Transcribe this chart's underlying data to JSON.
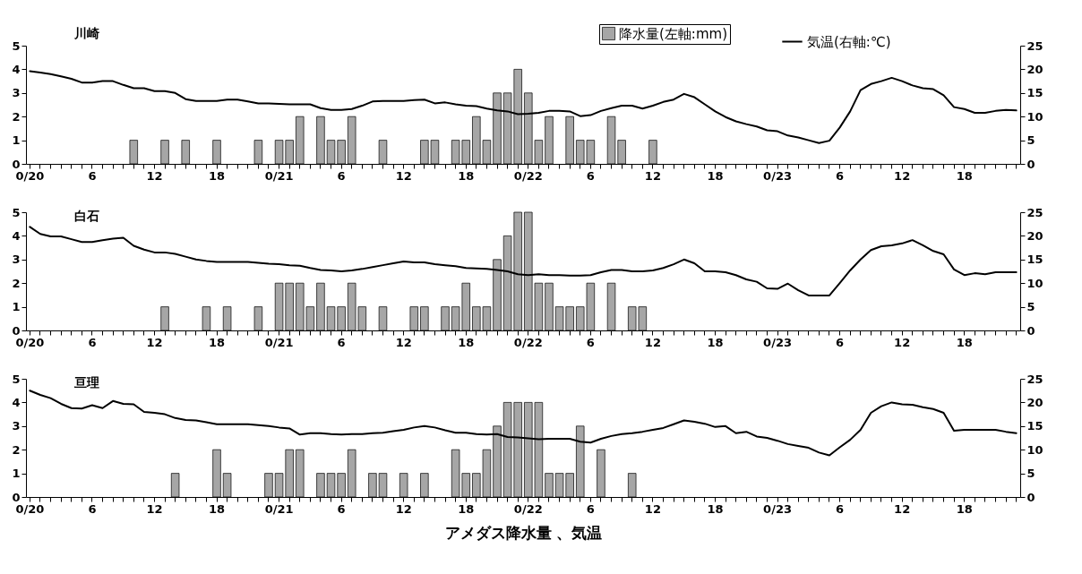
{
  "chart_data": [
    {
      "type": "bar",
      "title": "川崎",
      "legend": "top right",
      "categories": [
        "0/20",
        null,
        null,
        null,
        null,
        null,
        "6",
        null,
        null,
        null,
        null,
        null,
        "12",
        null,
        null,
        null,
        null,
        null,
        "18",
        null,
        null,
        null,
        null,
        null,
        "0/21",
        null,
        null,
        null,
        null,
        null,
        "6",
        null,
        null,
        null,
        null,
        null,
        "12",
        null,
        null,
        null,
        null,
        null,
        "18",
        null,
        null,
        null,
        null,
        null,
        "0/22",
        null,
        null,
        null,
        null,
        null,
        "6",
        null,
        null,
        null,
        null,
        null,
        "12",
        null,
        null,
        null,
        null,
        null,
        "18",
        null,
        null,
        null,
        null,
        null,
        "0/23",
        null,
        null,
        null,
        null,
        null,
        "6",
        null,
        null,
        null,
        null,
        null,
        "12",
        null,
        null,
        null,
        null,
        null,
        "18",
        null,
        null,
        null,
        null,
        null
      ],
      "series": [
        {
          "name": "降水量(左軸:mm)",
          "color": "#a6a6a6",
          "values": [
            0,
            0,
            0,
            0,
            0,
            0,
            0,
            0,
            0,
            0,
            1,
            0,
            0,
            1,
            0,
            1,
            0,
            0,
            1,
            0,
            0,
            0,
            1,
            0,
            1,
            1,
            2,
            0,
            2,
            1,
            1,
            2,
            0,
            0,
            1,
            0,
            0,
            0,
            1,
            1,
            0,
            1,
            1,
            2,
            1,
            3,
            3,
            4,
            3,
            1,
            2,
            0,
            2,
            1,
            1,
            0,
            2,
            1,
            0,
            0,
            1,
            0,
            0,
            0,
            0,
            0,
            0,
            0,
            0,
            0,
            0,
            0,
            0,
            0,
            0,
            0,
            0,
            0,
            0,
            0,
            0,
            0,
            0,
            0,
            0,
            0,
            0,
            0,
            0,
            0,
            0,
            0,
            0,
            0,
            0,
            0
          ]
        },
        {
          "name": "気温(右軸:℃)",
          "type": "line",
          "axis": "y2",
          "color": "#000000",
          "values": [
            19.6,
            19.3,
            19.0,
            18.5,
            18.0,
            17.2,
            17.2,
            17.5,
            17.5,
            16.7,
            16.0,
            16.0,
            15.4,
            15.4,
            15.0,
            13.7,
            13.3,
            13.3,
            13.3,
            13.6,
            13.6,
            13.2,
            12.8,
            12.8,
            12.7,
            12.6,
            12.6,
            12.6,
            11.8,
            11.4,
            11.4,
            11.6,
            12.3,
            13.2,
            13.3,
            13.3,
            13.3,
            13.5,
            13.6,
            12.8,
            13.0,
            12.6,
            12.3,
            12.2,
            11.7,
            11.3,
            11.1,
            10.5,
            10.6,
            10.8,
            11.2,
            11.2,
            11.1,
            10.1,
            10.3,
            11.2,
            11.8,
            12.3,
            12.3,
            11.7,
            12.3,
            13.1,
            13.6,
            14.8,
            14.1,
            12.6,
            11.1,
            9.9,
            9.0,
            8.4,
            7.9,
            7.1,
            6.9,
            6.0,
            5.6,
            5.0,
            4.4,
            4.9,
            7.7,
            11.1,
            15.6,
            16.9,
            17.5,
            18.2,
            17.5,
            16.6,
            16.0,
            15.8,
            14.5,
            12.0,
            11.6,
            10.8,
            10.8,
            11.2,
            11.4,
            11.3
          ]
        }
      ],
      "ylim": [
        0,
        5
      ],
      "yticks": [
        0,
        1,
        2,
        3,
        4,
        5
      ],
      "y2lim": [
        0,
        25
      ],
      "y2ticks": [
        0,
        5,
        10,
        15,
        20,
        25
      ]
    },
    {
      "type": "bar",
      "title": "白石",
      "legend": false,
      "categories": [
        "0/20",
        null,
        null,
        null,
        null,
        null,
        "6",
        null,
        null,
        null,
        null,
        null,
        "12",
        null,
        null,
        null,
        null,
        null,
        "18",
        null,
        null,
        null,
        null,
        null,
        "0/21",
        null,
        null,
        null,
        null,
        null,
        "6",
        null,
        null,
        null,
        null,
        null,
        "12",
        null,
        null,
        null,
        null,
        null,
        "18",
        null,
        null,
        null,
        null,
        null,
        "0/22",
        null,
        null,
        null,
        null,
        null,
        "6",
        null,
        null,
        null,
        null,
        null,
        "12",
        null,
        null,
        null,
        null,
        null,
        "18",
        null,
        null,
        null,
        null,
        null,
        "0/23",
        null,
        null,
        null,
        null,
        null,
        "6",
        null,
        null,
        null,
        null,
        null,
        "12",
        null,
        null,
        null,
        null,
        null,
        "18",
        null,
        null,
        null,
        null,
        null
      ],
      "series": [
        {
          "color": "#a6a6a6",
          "values": [
            0,
            0,
            0,
            0,
            0,
            0,
            0,
            0,
            0,
            0,
            0,
            0,
            0,
            1,
            0,
            0,
            0,
            1,
            0,
            1,
            0,
            0,
            1,
            0,
            2,
            2,
            2,
            1,
            2,
            1,
            1,
            2,
            1,
            0,
            1,
            0,
            0,
            1,
            1,
            0,
            1,
            1,
            2,
            1,
            1,
            3,
            4,
            5,
            5,
            2,
            2,
            1,
            1,
            1,
            2,
            0,
            2,
            0,
            1,
            1,
            0,
            0,
            0,
            0,
            0,
            0,
            0,
            0,
            0,
            0,
            0,
            0,
            0,
            0,
            0,
            0,
            0,
            0,
            0,
            0,
            0,
            0,
            0,
            0,
            0,
            0,
            0,
            0,
            0,
            0,
            0,
            0,
            0,
            0,
            0,
            0
          ]
        },
        {
          "type": "line",
          "axis": "y2",
          "color": "#000000",
          "values": [
            21.9,
            20.4,
            19.9,
            19.9,
            19.3,
            18.7,
            18.7,
            19.1,
            19.4,
            19.6,
            17.9,
            17.1,
            16.5,
            16.5,
            16.2,
            15.6,
            15.0,
            14.7,
            14.5,
            14.5,
            14.5,
            14.5,
            14.3,
            14.1,
            14.0,
            13.8,
            13.7,
            13.2,
            12.8,
            12.7,
            12.5,
            12.7,
            13.0,
            13.4,
            13.8,
            14.2,
            14.6,
            14.4,
            14.4,
            14.0,
            13.8,
            13.6,
            13.2,
            13.1,
            13.0,
            12.8,
            12.5,
            11.9,
            11.7,
            11.9,
            11.7,
            11.7,
            11.6,
            11.6,
            11.7,
            12.3,
            12.8,
            12.8,
            12.5,
            12.5,
            12.7,
            13.2,
            14.0,
            15.0,
            14.2,
            12.5,
            12.5,
            12.3,
            11.7,
            10.8,
            10.3,
            8.9,
            8.8,
            9.9,
            8.5,
            7.4,
            7.4,
            7.4,
            10.0,
            12.7,
            15.0,
            17.0,
            17.8,
            18.0,
            18.4,
            19.1,
            18.0,
            16.8,
            16.1,
            12.9,
            11.7,
            12.1,
            11.9,
            12.3,
            12.3,
            12.3
          ]
        }
      ],
      "ylim": [
        0,
        5
      ],
      "yticks": [
        0,
        1,
        2,
        3,
        4,
        5
      ],
      "y2lim": [
        0,
        25
      ],
      "y2ticks": [
        0,
        5,
        10,
        15,
        20,
        25
      ]
    },
    {
      "type": "bar",
      "title": "亘理",
      "legend": false,
      "xlabel": "アメダス降水量 、気温",
      "categories": [
        "0/20",
        null,
        null,
        null,
        null,
        null,
        "6",
        null,
        null,
        null,
        null,
        null,
        "12",
        null,
        null,
        null,
        null,
        null,
        "18",
        null,
        null,
        null,
        null,
        null,
        "0/21",
        null,
        null,
        null,
        null,
        null,
        "6",
        null,
        null,
        null,
        null,
        null,
        "12",
        null,
        null,
        null,
        null,
        null,
        "18",
        null,
        null,
        null,
        null,
        null,
        "0/22",
        null,
        null,
        null,
        null,
        null,
        "6",
        null,
        null,
        null,
        null,
        null,
        "12",
        null,
        null,
        null,
        null,
        null,
        "18",
        null,
        null,
        null,
        null,
        null,
        "0/23",
        null,
        null,
        null,
        null,
        null,
        "6",
        null,
        null,
        null,
        null,
        null,
        "12",
        null,
        null,
        null,
        null,
        null,
        "18",
        null,
        null,
        null,
        null,
        null
      ],
      "series": [
        {
          "color": "#a6a6a6",
          "values": [
            0,
            0,
            0,
            0,
            0,
            0,
            0,
            0,
            0,
            0,
            0,
            0,
            0,
            0,
            1,
            0,
            0,
            0,
            2,
            1,
            0,
            0,
            0,
            1,
            1,
            2,
            2,
            0,
            1,
            1,
            1,
            2,
            0,
            1,
            1,
            0,
            1,
            0,
            1,
            0,
            0,
            2,
            1,
            1,
            2,
            3,
            4,
            4,
            4,
            4,
            1,
            1,
            1,
            3,
            0,
            2,
            0,
            0,
            1,
            0,
            0,
            0,
            0,
            0,
            0,
            0,
            0,
            0,
            0,
            0,
            0,
            0,
            0,
            0,
            0,
            0,
            0,
            0,
            0,
            0,
            0,
            0,
            0,
            0,
            0,
            0,
            0,
            0,
            0,
            0,
            0,
            0,
            0,
            0,
            0,
            0
          ]
        },
        {
          "type": "line",
          "axis": "y2",
          "color": "#000000",
          "values": [
            22.5,
            21.6,
            20.9,
            19.7,
            18.8,
            18.7,
            19.4,
            18.8,
            20.3,
            19.7,
            19.6,
            18.0,
            17.8,
            17.5,
            16.7,
            16.3,
            16.2,
            15.8,
            15.4,
            15.4,
            15.4,
            15.4,
            15.2,
            15.0,
            14.7,
            14.5,
            13.2,
            13.5,
            13.5,
            13.3,
            13.2,
            13.3,
            13.3,
            13.5,
            13.6,
            13.9,
            14.2,
            14.7,
            15.0,
            14.7,
            14.1,
            13.6,
            13.6,
            13.3,
            13.2,
            13.3,
            12.7,
            12.6,
            12.4,
            12.2,
            12.3,
            12.3,
            12.3,
            11.7,
            11.5,
            12.3,
            12.9,
            13.3,
            13.5,
            13.8,
            14.2,
            14.6,
            15.4,
            16.2,
            15.9,
            15.5,
            14.8,
            15.0,
            13.5,
            13.8,
            12.8,
            12.5,
            11.9,
            11.2,
            10.8,
            10.4,
            9.4,
            8.8,
            10.5,
            12.1,
            14.2,
            17.8,
            19.2,
            20.0,
            19.6,
            19.5,
            19.0,
            18.6,
            17.8,
            14.0,
            14.2,
            14.2,
            14.2,
            14.2,
            13.8,
            13.5
          ]
        }
      ],
      "ylim": [
        0,
        5
      ],
      "yticks": [
        0,
        1,
        2,
        3,
        4,
        5
      ],
      "y2lim": [
        0,
        25
      ],
      "y2ticks": [
        0,
        5,
        10,
        15,
        20,
        25
      ]
    }
  ]
}
